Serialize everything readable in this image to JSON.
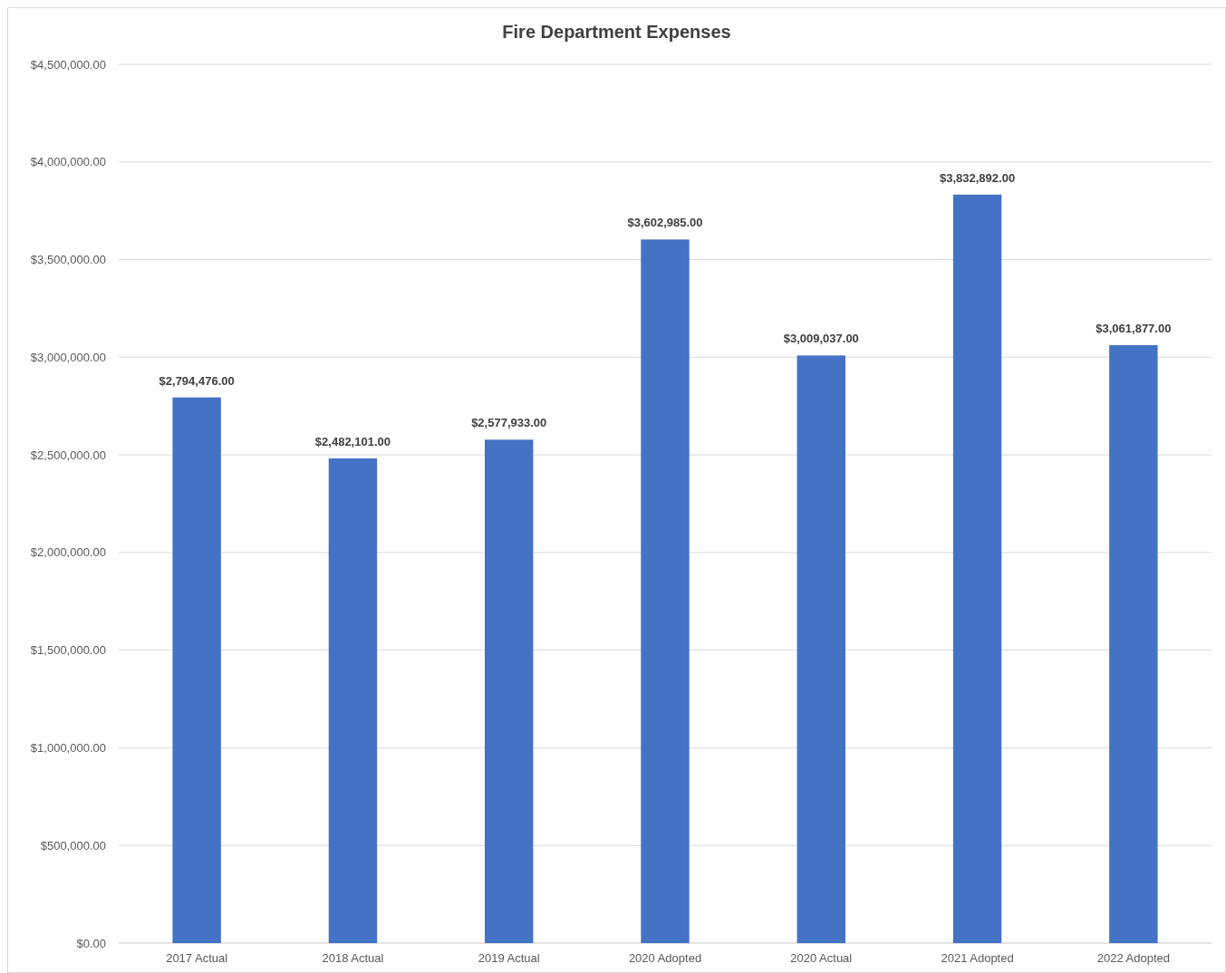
{
  "chart_data": {
    "type": "bar",
    "title": "Fire Department Expenses",
    "categories": [
      "2017 Actual",
      "2018 Actual",
      "2019 Actual",
      "2020 Adopted",
      "2020 Actual",
      "2021 Adopted",
      "2022 Adopted"
    ],
    "values": [
      2794476,
      2482101,
      2577933,
      3602985,
      3009037,
      3832892,
      3061877
    ],
    "value_labels": [
      "$2,794,476.00",
      "$2,482,101.00",
      "$2,577,933.00",
      "$3,602,985.00",
      "$3,009,037.00",
      "$3,832,892.00",
      "$3,061,877.00"
    ],
    "color": "#4472c4",
    "ylim": [
      0,
      4500000
    ],
    "yticks": [
      {
        "value": 0,
        "label": "$0.00"
      },
      {
        "value": 500000,
        "label": "$500,000.00"
      },
      {
        "value": 1000000,
        "label": "$1,000,000.00"
      },
      {
        "value": 1500000,
        "label": "$1,500,000.00"
      },
      {
        "value": 2000000,
        "label": "$2,000,000.00"
      },
      {
        "value": 2500000,
        "label": "$2,500,000.00"
      },
      {
        "value": 3000000,
        "label": "$3,000,000.00"
      },
      {
        "value": 3500000,
        "label": "$3,500,000.00"
      },
      {
        "value": 4000000,
        "label": "$4,000,000.00"
      },
      {
        "value": 4500000,
        "label": "$4,500,000.00"
      }
    ],
    "grid": "y"
  }
}
